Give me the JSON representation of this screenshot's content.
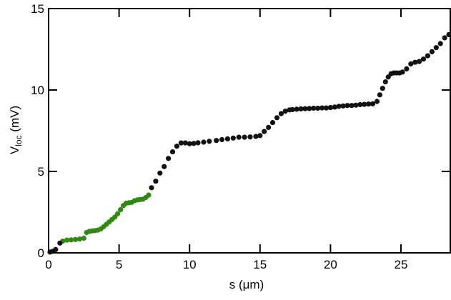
{
  "chart_data": {
    "type": "scatter",
    "xlabel": "s (μm)",
    "ylabel": {
      "main": "V",
      "subscript": "loc",
      "unit": " (mV)"
    },
    "xlim": [
      0,
      28.5
    ],
    "ylim": [
      0,
      15
    ],
    "xticks": [
      0,
      5,
      10,
      15,
      20,
      25
    ],
    "yticks": [
      0,
      5,
      10,
      15
    ],
    "grid": false,
    "colors": {
      "series_green": "#2e8b10",
      "series_black": "#111111"
    },
    "series": [
      {
        "color": "#2e8b10",
        "x": [
          1.0,
          1.3,
          1.6,
          1.9,
          2.2,
          2.5,
          2.7,
          2.9,
          3.1,
          3.3,
          3.5,
          3.7,
          3.9,
          4.1,
          4.3,
          4.5,
          4.7,
          4.9,
          5.1,
          5.3,
          5.5,
          5.7,
          5.9,
          6.1,
          6.3,
          6.5,
          6.7,
          6.9,
          7.1
        ],
        "y": [
          0.72,
          0.78,
          0.8,
          0.82,
          0.85,
          0.9,
          1.25,
          1.32,
          1.35,
          1.37,
          1.4,
          1.47,
          1.6,
          1.75,
          1.9,
          2.05,
          2.2,
          2.4,
          2.65,
          2.9,
          3.05,
          3.08,
          3.1,
          3.2,
          3.25,
          3.27,
          3.3,
          3.4,
          3.55
        ]
      },
      {
        "color": "#111111",
        "x": [
          0.1,
          0.3,
          0.5,
          0.8,
          7.3,
          7.6,
          7.9,
          8.2,
          8.5,
          8.8,
          9.1,
          9.4,
          9.7,
          10.0,
          10.3,
          10.6,
          11.0,
          11.4,
          11.9,
          12.3,
          12.7,
          13.1,
          13.5,
          13.9,
          14.3,
          14.7,
          15.0,
          15.3,
          15.6,
          15.9,
          16.2,
          16.5,
          16.8,
          17.1,
          17.3,
          17.6,
          17.9,
          18.2,
          18.5,
          18.8,
          19.1,
          19.4,
          19.7,
          20.0,
          20.3,
          20.6,
          20.9,
          21.2,
          21.5,
          21.8,
          22.1,
          22.4,
          22.7,
          23.0,
          23.3,
          23.5,
          23.7,
          23.9,
          24.1,
          24.3,
          24.5,
          24.7,
          24.9,
          25.1,
          25.4,
          25.7,
          26.0,
          26.3,
          26.6,
          26.9,
          27.2,
          27.5,
          27.8,
          28.1,
          28.4
        ],
        "y": [
          0.05,
          0.1,
          0.2,
          0.6,
          4.0,
          4.4,
          4.9,
          5.3,
          5.8,
          6.2,
          6.55,
          6.75,
          6.75,
          6.7,
          6.72,
          6.76,
          6.8,
          6.85,
          6.9,
          6.95,
          7.0,
          7.05,
          7.1,
          7.1,
          7.12,
          7.15,
          7.2,
          7.45,
          7.7,
          8.0,
          8.3,
          8.55,
          8.7,
          8.78,
          8.8,
          8.82,
          8.84,
          8.85,
          8.86,
          8.88,
          8.88,
          8.9,
          8.9,
          8.92,
          8.95,
          9.0,
          9.02,
          9.05,
          9.05,
          9.07,
          9.1,
          9.12,
          9.14,
          9.15,
          9.3,
          9.7,
          10.1,
          10.5,
          10.8,
          11.0,
          11.05,
          11.05,
          11.05,
          11.1,
          11.3,
          11.6,
          11.7,
          11.75,
          11.9,
          12.1,
          12.35,
          12.6,
          12.85,
          13.2,
          13.4
        ]
      }
    ]
  }
}
